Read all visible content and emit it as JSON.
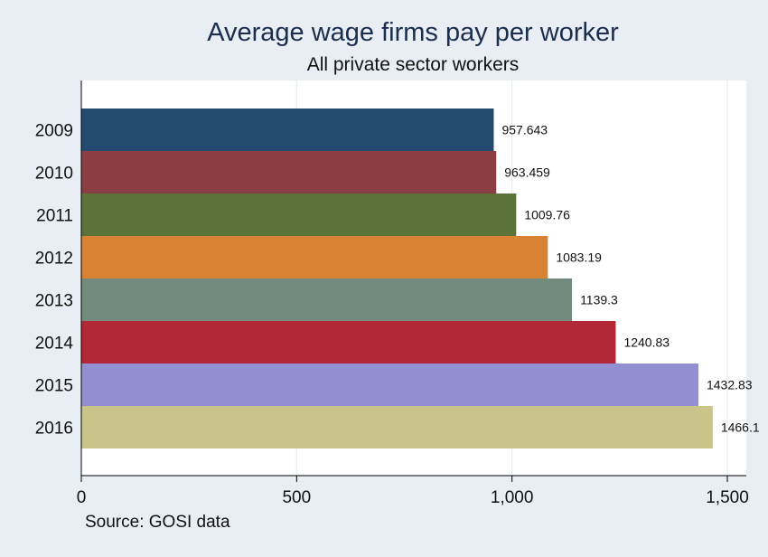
{
  "chart_data": {
    "type": "bar",
    "orientation": "horizontal",
    "title": "Average wage firms pay per worker",
    "subtitle": "All private sector workers",
    "note": "Source: GOSI data",
    "categories": [
      "2009",
      "2010",
      "2011",
      "2012",
      "2013",
      "2014",
      "2015",
      "2016"
    ],
    "values": [
      957.643,
      963.459,
      1009.76,
      1083.19,
      1139.3,
      1240.83,
      1432.83,
      1466.1
    ],
    "value_labels": [
      "957.643",
      "963.459",
      "1009.76",
      "1083.19",
      "1139.3",
      "1240.83",
      "1432.83",
      "1466.1"
    ],
    "colors": [
      "#244a6f",
      "#8a3d43",
      "#5b7238",
      "#d88233",
      "#728b7e",
      "#b42737",
      "#9290d0",
      "#cbc48a"
    ],
    "xlim": [
      0,
      1500
    ],
    "xticks": [
      0,
      500,
      1000,
      1500
    ],
    "xtick_labels": [
      "0",
      "500",
      "1,000",
      "1,500"
    ],
    "grid": true,
    "plot_background": "#ffffff",
    "page_background": "#e8eef3",
    "gridline_color": "#e8eef3"
  }
}
